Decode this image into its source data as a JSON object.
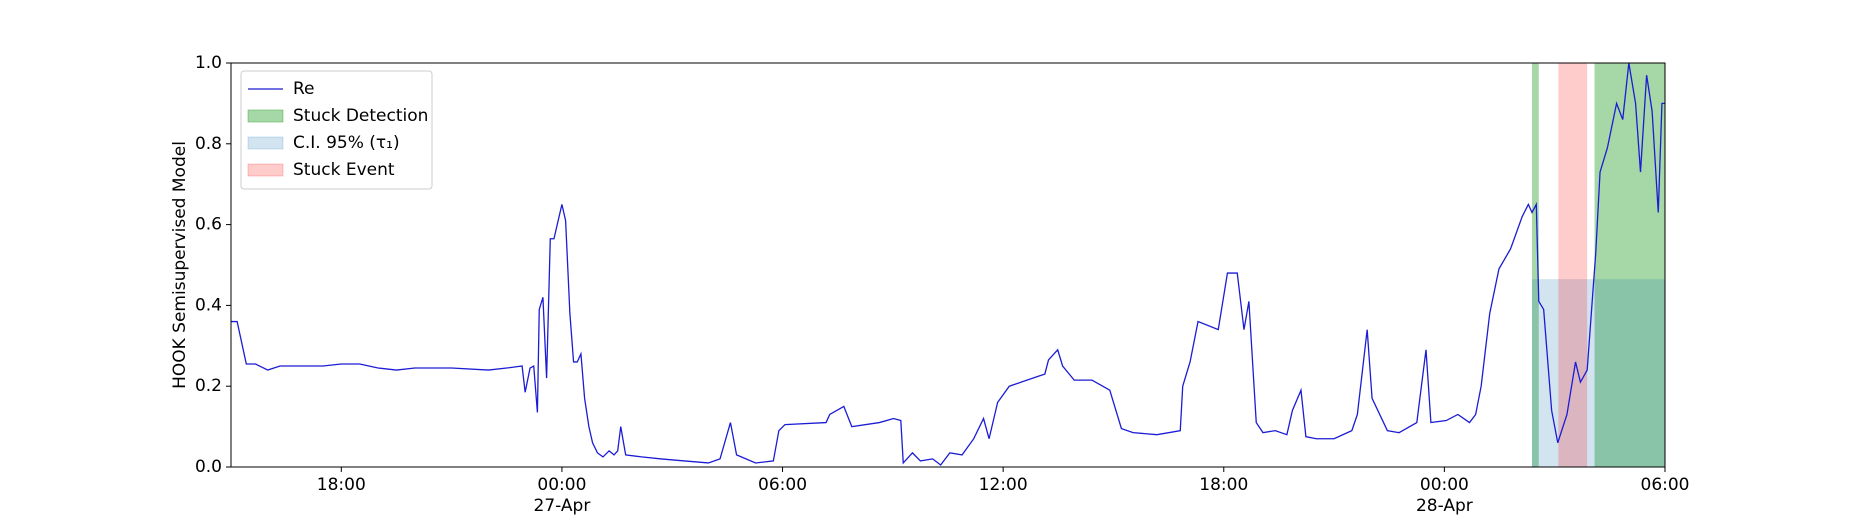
{
  "chart_data": {
    "type": "line",
    "ylabel": "HOOK Semisupervised Model",
    "x": [
      "26-Apr 15:00",
      "26-Apr 15:10",
      "26-Apr 15:20",
      "26-Apr 15:25",
      "26-Apr 15:40",
      "26-Apr 16:00",
      "26-Apr 16:20",
      "26-Apr 17:00",
      "26-Apr 17:30",
      "26-Apr 18:00",
      "26-Apr 18:30",
      "26-Apr 19:00",
      "26-Apr 19:30",
      "26-Apr 20:00",
      "26-Apr 21:00",
      "26-Apr 22:00",
      "26-Apr 22:30",
      "26-Apr 22:55",
      "26-Apr 23:00",
      "26-Apr 23:08",
      "26-Apr 23:14",
      "26-Apr 23:20",
      "26-Apr 23:23",
      "26-Apr 23:29",
      "26-Apr 23:35",
      "26-Apr 23:41",
      "26-Apr 23:47",
      "27-Apr 00:00",
      "27-Apr 00:06",
      "27-Apr 00:13",
      "27-Apr 00:19",
      "27-Apr 00:25",
      "27-Apr 00:31",
      "27-Apr 00:37",
      "27-Apr 00:44",
      "27-Apr 00:50",
      "27-Apr 00:58",
      "27-Apr 01:07",
      "27-Apr 01:17",
      "27-Apr 01:25",
      "27-Apr 01:31",
      "27-Apr 01:36",
      "27-Apr 01:44",
      "27-Apr 02:10",
      "27-Apr 02:42",
      "27-Apr 03:20",
      "27-Apr 03:59",
      "27-Apr 04:18",
      "27-Apr 04:35",
      "27-Apr 04:45",
      "27-Apr 05:16",
      "27-Apr 05:45",
      "27-Apr 05:54",
      "27-Apr 06:04",
      "27-Apr 07:11",
      "27-Apr 07:17",
      "27-Apr 07:40",
      "27-Apr 07:53",
      "27-Apr 08:38",
      "27-Apr 09:01",
      "27-Apr 09:13",
      "27-Apr 09:17",
      "27-Apr 09:32",
      "27-Apr 09:45",
      "27-Apr 10:05",
      "27-Apr 10:18",
      "27-Apr 10:33",
      "27-Apr 10:53",
      "27-Apr 11:12",
      "27-Apr 11:28",
      "27-Apr 11:37",
      "27-Apr 11:51",
      "27-Apr 12:10",
      "27-Apr 12:58",
      "27-Apr 13:08",
      "27-Apr 13:14",
      "27-Apr 13:29",
      "27-Apr 13:37",
      "27-Apr 13:56",
      "27-Apr 14:25",
      "27-Apr 14:54",
      "27-Apr 15:13",
      "27-Apr 15:32",
      "27-Apr 16:11",
      "27-Apr 16:49",
      "27-Apr 16:53",
      "27-Apr 17:05",
      "27-Apr 17:18",
      "27-Apr 17:51",
      "27-Apr 18:06",
      "27-Apr 18:22",
      "27-Apr 18:33",
      "27-Apr 18:41",
      "27-Apr 18:53",
      "27-Apr 19:04",
      "27-Apr 19:24",
      "27-Apr 19:43",
      "27-Apr 19:52",
      "27-Apr 20:06",
      "27-Apr 20:14",
      "27-Apr 20:31",
      "27-Apr 21:00",
      "27-Apr 21:29",
      "27-Apr 21:38",
      "27-Apr 21:54",
      "27-Apr 22:02",
      "27-Apr 22:27",
      "27-Apr 22:46",
      "27-Apr 23:15",
      "27-Apr 23:30",
      "27-Apr 23:38",
      "28-Apr 00:03",
      "28-Apr 00:22",
      "28-Apr 00:41",
      "28-Apr 00:51",
      "28-Apr 01:00",
      "28-Apr 01:14",
      "28-Apr 01:29",
      "28-Apr 01:48",
      "28-Apr 02:07",
      "28-Apr 02:17",
      "28-Apr 02:23",
      "28-Apr 02:30",
      "28-Apr 02:34",
      "28-Apr 02:42",
      "28-Apr 02:55",
      "28-Apr 03:05",
      "28-Apr 03:20",
      "28-Apr 03:34",
      "28-Apr 03:42",
      "28-Apr 03:53",
      "28-Apr 04:07",
      "28-Apr 04:14",
      "28-Apr 04:26",
      "28-Apr 04:41",
      "28-Apr 04:51",
      "28-Apr 05:01",
      "28-Apr 05:12",
      "28-Apr 05:20",
      "28-Apr 05:30",
      "28-Apr 05:39",
      "28-Apr 05:49",
      "28-Apr 05:55",
      "28-Apr 06:00"
    ],
    "series": [
      {
        "name": "Re",
        "color": "#1c1cd4",
        "values": [
          0.36,
          0.36,
          0.29,
          0.255,
          0.255,
          0.24,
          0.25,
          0.25,
          0.25,
          0.255,
          0.255,
          0.245,
          0.24,
          0.245,
          0.245,
          0.24,
          0.245,
          0.25,
          0.185,
          0.245,
          0.25,
          0.135,
          0.39,
          0.42,
          0.22,
          0.565,
          0.565,
          0.65,
          0.61,
          0.38,
          0.26,
          0.26,
          0.28,
          0.17,
          0.1,
          0.06,
          0.035,
          0.025,
          0.04,
          0.03,
          0.04,
          0.1,
          0.03,
          0.025,
          0.02,
          0.015,
          0.01,
          0.02,
          0.11,
          0.03,
          0.01,
          0.015,
          0.09,
          0.105,
          0.11,
          0.13,
          0.15,
          0.1,
          0.11,
          0.12,
          0.115,
          0.01,
          0.035,
          0.015,
          0.02,
          0.005,
          0.035,
          0.03,
          0.07,
          0.12,
          0.07,
          0.16,
          0.2,
          0.225,
          0.23,
          0.265,
          0.29,
          0.25,
          0.215,
          0.215,
          0.19,
          0.095,
          0.085,
          0.08,
          0.09,
          0.2,
          0.26,
          0.36,
          0.34,
          0.48,
          0.48,
          0.34,
          0.41,
          0.11,
          0.085,
          0.09,
          0.08,
          0.14,
          0.19,
          0.075,
          0.07,
          0.07,
          0.09,
          0.13,
          0.34,
          0.17,
          0.09,
          0.085,
          0.11,
          0.29,
          0.11,
          0.115,
          0.13,
          0.11,
          0.13,
          0.2,
          0.38,
          0.49,
          0.54,
          0.62,
          0.65,
          0.63,
          0.65,
          0.41,
          0.39,
          0.14,
          0.06,
          0.13,
          0.26,
          0.21,
          0.24,
          0.53,
          0.73,
          0.79,
          0.9,
          0.86,
          1.0,
          0.9,
          0.73,
          0.97,
          0.88,
          0.63,
          0.9,
          0.9
        ]
      }
    ],
    "spans": [
      {
        "name": "Stuck Detection",
        "color": "#2ca02c",
        "opacity": 0.42,
        "ranges": [
          [
            "28-Apr 02:23",
            "28-Apr 02:34"
          ],
          [
            "28-Apr 04:05",
            "28-Apr 06:00"
          ]
        ]
      },
      {
        "name": "C.I. 95% (τ₁)",
        "color": "#1f77b4",
        "opacity": 0.2,
        "y_top": 0.465,
        "ranges": [
          [
            "28-Apr 02:23",
            "28-Apr 06:00"
          ]
        ]
      },
      {
        "name": "Stuck Event",
        "color": "#ff0000",
        "opacity": 0.2,
        "ranges": [
          [
            "28-Apr 03:06",
            "28-Apr 03:53"
          ]
        ]
      }
    ],
    "xlim": [
      "26-Apr 15:00",
      "28-Apr 06:00"
    ],
    "xticks": [
      {
        "value": "26-Apr 18:00",
        "label": "18:00"
      },
      {
        "value": "27-Apr 00:00",
        "label": "00:00\n27-Apr"
      },
      {
        "value": "27-Apr 06:00",
        "label": "06:00"
      },
      {
        "value": "27-Apr 12:00",
        "label": "12:00"
      },
      {
        "value": "27-Apr 18:00",
        "label": "18:00"
      },
      {
        "value": "28-Apr 00:00",
        "label": "00:00\n28-Apr"
      },
      {
        "value": "28-Apr 06:00",
        "label": "06:00"
      }
    ],
    "ylim": [
      0,
      1
    ],
    "yticks": [
      {
        "value": 0,
        "label": "0.0"
      },
      {
        "value": 0.2,
        "label": "0.2"
      },
      {
        "value": 0.4,
        "label": "0.4"
      },
      {
        "value": 0.6,
        "label": "0.6"
      },
      {
        "value": 0.8,
        "label": "0.8"
      },
      {
        "value": 1,
        "label": "1.0"
      }
    ],
    "legend": "upper left",
    "grid": false
  }
}
